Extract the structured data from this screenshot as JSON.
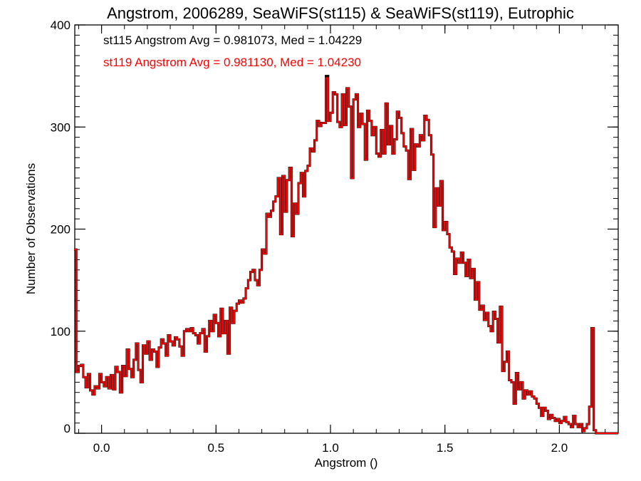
{
  "chart_data": {
    "type": "bar",
    "style": "step-histogram",
    "title": "Angstrom, 2006289, SeaWiFS(st115) & SeaWiFS(st119), Eutrophic",
    "xlabel": "Angstrom ()",
    "ylabel": "Number of Observations",
    "xlim": [
      -0.117,
      2.257
    ],
    "ylim": [
      0,
      400
    ],
    "x_ticks": [
      "0.0",
      "0.5",
      "1.0",
      "1.5",
      "2.0"
    ],
    "x_tick_values": [
      0,
      0.5,
      1.0,
      1.5,
      2.0
    ],
    "x_minor_step": 0.1,
    "y_ticks": [
      "0",
      "100",
      "200",
      "300",
      "400"
    ],
    "y_tick_values": [
      0,
      100,
      200,
      300,
      400
    ],
    "y_minor_step": 10,
    "grid": false,
    "bin_start": -0.12,
    "bin_width": 0.01,
    "annotations": [
      {
        "text": "st115 Angstrom Avg = 0.981073, Med = 1.04229",
        "color": "#000000"
      },
      {
        "text": "st119 Angstrom Avg = 0.981130, Med = 1.04230",
        "color": "#ff0000"
      }
    ],
    "series": [
      {
        "name": "st115",
        "color": "#000000",
        "values": [
          180,
          60,
          66,
          67,
          55,
          45,
          58,
          42,
          38,
          46,
          44,
          58,
          50,
          46,
          55,
          44,
          57,
          43,
          65,
          60,
          40,
          66,
          56,
          82,
          63,
          55,
          72,
          88,
          62,
          50,
          86,
          78,
          90,
          72,
          82,
          80,
          65,
          84,
          92,
          88,
          76,
          96,
          90,
          86,
          94,
          92,
          85,
          76,
          100,
          102,
          100,
          103,
          98,
          96,
          88,
          98,
          102,
          80,
          95,
          110,
          100,
          116,
          108,
          95,
          122,
          98,
          110,
          78,
          123,
          108,
          120,
          127,
          130,
          128,
          132,
          142,
          150,
          158,
          160,
          150,
          145,
          160,
          180,
          176,
          215,
          212,
          218,
          227,
          232,
          250,
          195,
          252,
          217,
          248,
          260,
          193,
          225,
          215,
          245,
          255,
          232,
          257,
          262,
          279,
          276,
          287,
          306,
          301,
          304,
          304,
          350,
          306,
          314,
          334,
          332,
          305,
          300,
          332,
          302,
          338,
          320,
          250,
          327,
          332,
          300,
          313,
          303,
          268,
          316,
          306,
          292,
          300,
          274,
          271,
          297,
          274,
          323,
          283,
          301,
          274,
          288,
          315,
          309,
          294,
          281,
          277,
          249,
          298,
          258,
          283,
          281,
          292,
          287,
          311,
          307,
          292,
          273,
          202,
          240,
          223,
          247,
          199,
          207,
          195,
          182,
          178,
          156,
          171,
          167,
          177,
          167,
          154,
          170,
          152,
          161,
          131,
          148,
          121,
          125,
          111,
          118,
          105,
          100,
          119,
          112,
          89,
          124,
          61,
          70,
          80,
          52,
          50,
          29,
          59,
          43,
          50,
          34,
          42,
          38,
          41,
          36,
          34,
          29,
          25,
          17,
          25,
          22,
          14,
          18,
          15,
          12,
          14,
          10,
          12,
          16,
          11,
          9,
          6,
          17,
          9,
          6,
          9,
          2,
          5,
          9,
          26,
          103,
          3
        ]
      },
      {
        "name": "st119",
        "color": "#ff0000",
        "values": [
          180,
          60,
          66,
          67,
          55,
          45,
          58,
          42,
          38,
          46,
          44,
          58,
          50,
          46,
          55,
          44,
          57,
          43,
          65,
          60,
          40,
          66,
          56,
          82,
          63,
          55,
          72,
          88,
          62,
          50,
          86,
          78,
          90,
          72,
          82,
          80,
          65,
          84,
          92,
          88,
          76,
          96,
          90,
          86,
          94,
          92,
          85,
          76,
          100,
          102,
          100,
          103,
          98,
          96,
          88,
          98,
          102,
          80,
          95,
          110,
          100,
          116,
          108,
          95,
          122,
          98,
          110,
          78,
          123,
          108,
          120,
          127,
          130,
          128,
          132,
          142,
          150,
          158,
          160,
          150,
          145,
          160,
          180,
          176,
          215,
          212,
          218,
          227,
          232,
          250,
          195,
          252,
          217,
          248,
          260,
          193,
          225,
          215,
          245,
          255,
          232,
          257,
          262,
          279,
          276,
          287,
          306,
          301,
          304,
          304,
          348,
          306,
          314,
          334,
          332,
          305,
          300,
          332,
          302,
          338,
          320,
          250,
          327,
          332,
          300,
          313,
          303,
          268,
          316,
          306,
          292,
          300,
          274,
          271,
          297,
          274,
          323,
          283,
          301,
          274,
          288,
          315,
          309,
          294,
          281,
          277,
          249,
          298,
          258,
          283,
          281,
          292,
          287,
          311,
          307,
          292,
          273,
          202,
          240,
          223,
          247,
          199,
          207,
          195,
          182,
          178,
          156,
          171,
          167,
          177,
          167,
          154,
          170,
          152,
          161,
          131,
          148,
          121,
          125,
          111,
          118,
          105,
          100,
          119,
          112,
          89,
          124,
          61,
          70,
          80,
          52,
          50,
          29,
          59,
          43,
          50,
          34,
          42,
          38,
          41,
          36,
          34,
          29,
          25,
          17,
          25,
          22,
          14,
          18,
          15,
          12,
          14,
          10,
          12,
          16,
          11,
          9,
          6,
          17,
          9,
          6,
          9,
          2,
          5,
          9,
          26,
          103,
          3
        ]
      }
    ]
  }
}
